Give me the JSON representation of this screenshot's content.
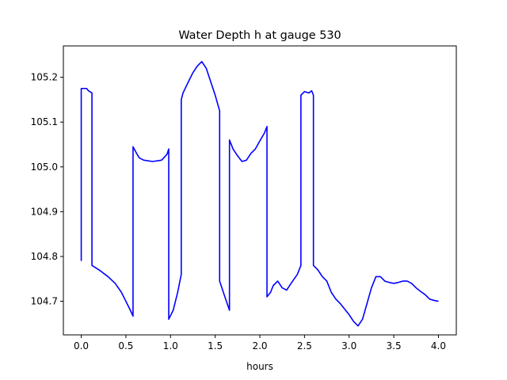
{
  "chart_data": {
    "type": "line",
    "title": "Water Depth h at gauge 530",
    "xlabel": "hours",
    "ylabel": "",
    "xlim": [
      -0.2,
      4.2
    ],
    "ylim": [
      104.625,
      105.27
    ],
    "x_ticks": [
      0.0,
      0.5,
      1.0,
      1.5,
      2.0,
      2.5,
      3.0,
      3.5,
      4.0
    ],
    "x_tick_labels": [
      "0.0",
      "0.5",
      "1.0",
      "1.5",
      "2.0",
      "2.5",
      "3.0",
      "3.5",
      "4.0"
    ],
    "y_ticks": [
      104.7,
      104.8,
      104.9,
      105.0,
      105.1,
      105.2
    ],
    "y_tick_labels": [
      "104.7",
      "104.8",
      "104.9",
      "105.0",
      "105.1",
      "105.2"
    ],
    "grid": false,
    "series": [
      {
        "color": "#0000ff",
        "x": [
          0.0,
          0.0,
          0.06,
          0.08,
          0.12,
          0.12,
          0.2,
          0.3,
          0.38,
          0.45,
          0.5,
          0.55,
          0.58,
          0.58,
          0.62,
          0.65,
          0.7,
          0.8,
          0.9,
          0.96,
          0.98,
          0.98,
          1.03,
          1.08,
          1.12,
          1.12,
          1.14,
          1.2,
          1.25,
          1.3,
          1.35,
          1.4,
          1.45,
          1.5,
          1.55,
          1.55,
          1.6,
          1.66,
          1.66,
          1.7,
          1.75,
          1.8,
          1.85,
          1.9,
          1.95,
          2.0,
          2.05,
          2.08,
          2.08,
          2.12,
          2.15,
          2.2,
          2.25,
          2.3,
          2.35,
          2.42,
          2.46,
          2.46,
          2.5,
          2.55,
          2.58,
          2.6,
          2.6,
          2.65,
          2.7,
          2.75,
          2.8,
          2.85,
          2.9,
          3.0,
          3.05,
          3.1,
          3.15,
          3.2,
          3.25,
          3.3,
          3.35,
          3.4,
          3.45,
          3.5,
          3.55,
          3.6,
          3.65,
          3.7,
          3.75,
          3.8,
          3.85,
          3.9,
          3.95,
          4.0
        ],
        "y": [
          104.79,
          105.175,
          105.175,
          105.17,
          105.165,
          104.78,
          104.77,
          104.755,
          104.74,
          104.72,
          104.7,
          104.68,
          104.667,
          105.045,
          105.03,
          105.02,
          105.015,
          105.012,
          105.015,
          105.028,
          105.04,
          104.66,
          104.68,
          104.72,
          104.76,
          105.15,
          105.165,
          105.19,
          105.21,
          105.225,
          105.235,
          105.22,
          105.19,
          105.16,
          105.125,
          104.745,
          104.715,
          104.68,
          105.06,
          105.04,
          105.025,
          105.012,
          105.015,
          105.03,
          105.04,
          105.058,
          105.075,
          105.09,
          104.71,
          104.72,
          104.735,
          104.745,
          104.73,
          104.725,
          104.74,
          104.76,
          104.78,
          105.16,
          105.168,
          105.165,
          105.17,
          105.16,
          104.78,
          104.77,
          104.755,
          104.745,
          104.72,
          104.705,
          104.695,
          104.67,
          104.655,
          104.645,
          104.66,
          104.695,
          104.73,
          104.755,
          104.755,
          104.745,
          104.742,
          104.74,
          104.742,
          104.745,
          104.745,
          104.74,
          104.73,
          104.722,
          104.715,
          104.705,
          104.702,
          104.7
        ]
      }
    ]
  }
}
